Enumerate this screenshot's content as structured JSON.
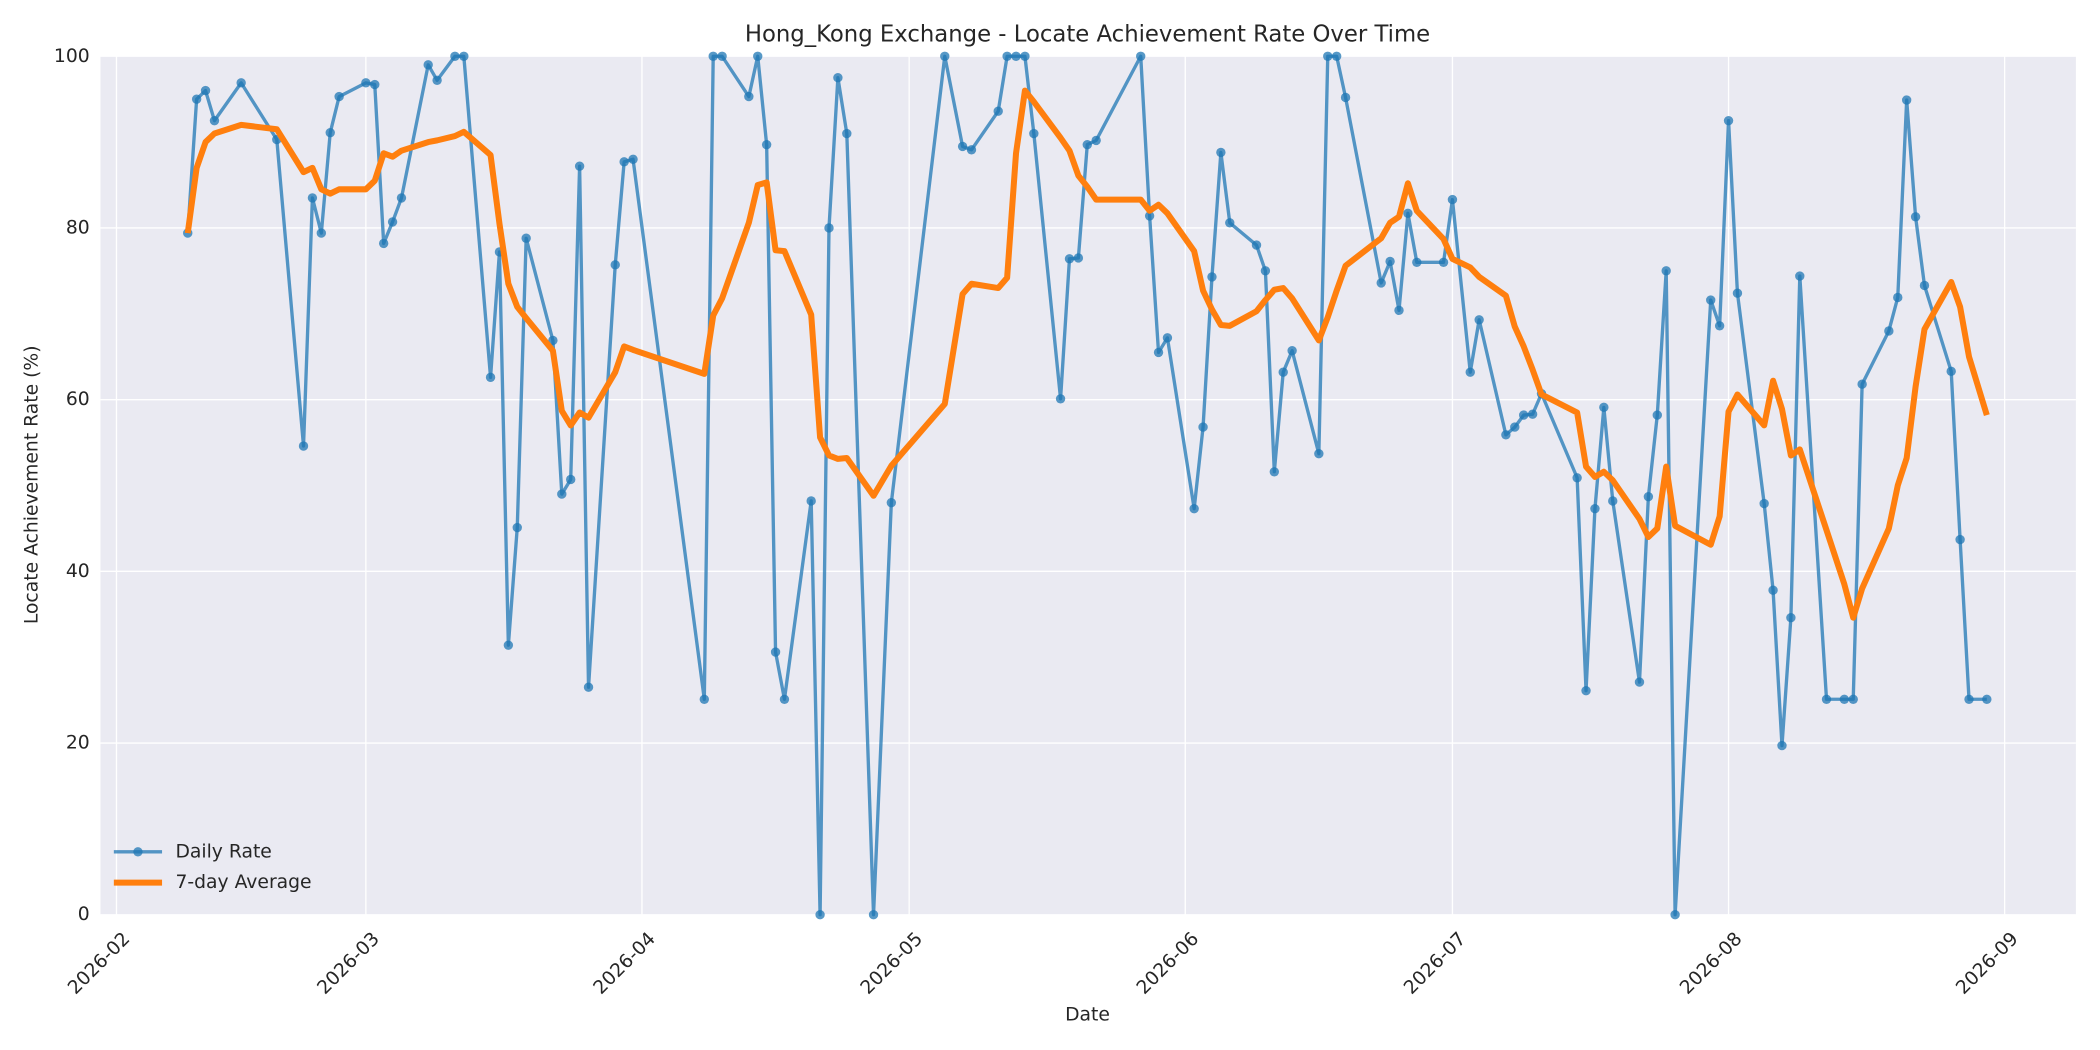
{
  "chart_data": {
    "type": "line",
    "title": "Hong_Kong Exchange - Locate Achievement Rate Over Time",
    "xlabel": "Date",
    "ylabel": "Locate Achievement Rate (%)",
    "x": [
      40,
      41,
      42,
      43,
      46,
      50,
      53,
      54,
      55,
      56,
      57,
      60,
      61,
      62,
      63,
      64,
      67,
      68,
      70,
      71,
      74,
      75,
      76,
      77,
      78,
      81,
      82,
      83,
      84,
      85,
      88,
      89,
      90,
      98,
      99,
      100,
      103,
      104,
      105,
      106,
      107,
      110,
      111,
      112,
      113,
      114,
      117,
      119,
      125,
      127,
      128,
      131,
      132,
      133,
      134,
      135,
      138,
      139,
      140,
      141,
      142,
      147,
      148,
      149,
      150,
      153,
      154,
      155,
      156,
      157,
      160,
      161,
      162,
      163,
      164,
      167,
      168,
      169,
      170,
      174,
      175,
      176,
      177,
      178,
      181,
      182,
      184,
      185,
      188,
      189,
      190,
      191,
      192,
      196,
      197,
      198,
      199,
      200,
      203,
      204,
      205,
      206,
      207,
      211,
      212,
      213,
      214,
      217,
      218,
      219,
      220,
      221,
      224,
      226,
      227,
      228,
      231,
      232,
      233,
      234,
      235,
      238,
      239,
      240,
      242
    ],
    "xlim": [
      30.2,
      252
    ],
    "xticks": [
      {
        "value": 32,
        "label": "2026-02"
      },
      {
        "value": 60,
        "label": "2026-03"
      },
      {
        "value": 91,
        "label": "2026-04"
      },
      {
        "value": 121,
        "label": "2026-05"
      },
      {
        "value": 152,
        "label": "2026-06"
      },
      {
        "value": 182,
        "label": "2026-07"
      },
      {
        "value": 213,
        "label": "2026-08"
      },
      {
        "value": 244,
        "label": "2026-09"
      }
    ],
    "ylim": [
      0,
      100
    ],
    "yticks": [
      0,
      20,
      40,
      60,
      80,
      100
    ],
    "grid": true,
    "legend": "lower left",
    "series": [
      {
        "name": "Daily Rate",
        "color": "#1f77b4",
        "marker": true,
        "values": [
          79.4,
          95,
          96,
          92.5,
          96.9,
          90.3,
          54.6,
          83.5,
          79.4,
          91.1,
          95.3,
          96.9,
          96.7,
          78.2,
          80.7,
          83.5,
          99,
          97.2,
          100,
          100,
          62.6,
          77.2,
          31.4,
          45.1,
          78.8,
          66.9,
          49,
          50.7,
          87.2,
          26.5,
          75.7,
          87.7,
          88,
          25.1,
          100,
          100,
          95.3,
          100,
          89.7,
          30.6,
          25.1,
          48.2,
          0,
          80,
          97.5,
          91,
          0,
          48,
          100,
          89.5,
          89.1,
          93.6,
          100,
          100,
          100,
          91,
          60.1,
          76.4,
          76.5,
          89.7,
          90.2,
          100,
          81.4,
          65.5,
          67.2,
          47.3,
          56.8,
          74.3,
          88.8,
          80.6,
          78,
          75,
          51.6,
          63.2,
          65.7,
          53.7,
          100,
          100,
          95.2,
          73.6,
          76.1,
          70.4,
          81.7,
          76,
          76,
          83.3,
          63.2,
          69.3,
          55.9,
          56.8,
          58.2,
          58.3,
          60.7,
          50.9,
          26.1,
          47.3,
          59.1,
          48.2,
          27.1,
          48.7,
          58.2,
          75,
          0,
          71.6,
          68.6,
          92.5,
          72.4,
          47.9,
          37.8,
          19.7,
          34.6,
          74.4,
          25.1,
          25.1,
          25.1,
          61.8,
          68,
          71.9,
          94.9,
          81.3,
          73.3,
          63.3,
          43.7,
          25.1,
          25.1
        ]
      },
      {
        "name": "7-day Average",
        "color": "#ff7f0e",
        "marker": false,
        "values": [
          79.4,
          87,
          90,
          91,
          92,
          91.5,
          86.5,
          87,
          84.5,
          84,
          84.5,
          84.5,
          85.5,
          88.7,
          88.3,
          89,
          90,
          90.2,
          90.7,
          91.2,
          88.5,
          80.5,
          73.5,
          70.8,
          69.5,
          65.7,
          58.7,
          57,
          58.5,
          57.9,
          63.2,
          66.2,
          65.8,
          63,
          69.8,
          71.8,
          80.6,
          85,
          85.3,
          77.4,
          77.3,
          69.9,
          55.6,
          53.5,
          53.1,
          53.2,
          48.8,
          52.3,
          59.5,
          72.3,
          73.5,
          73,
          74.2,
          88.7,
          96,
          94.7,
          90.5,
          89,
          86.1,
          84.8,
          83.3,
          83.3,
          82,
          82.7,
          81.7,
          77.3,
          72.7,
          70.5,
          68.7,
          68.6,
          70.3,
          71.6,
          72.8,
          73,
          71.8,
          66.9,
          69.6,
          72.7,
          75.6,
          78.8,
          80.6,
          81.3,
          85.2,
          82,
          78.7,
          76.4,
          75.4,
          74.3,
          72.1,
          68.5,
          66.2,
          63.5,
          60.6,
          58.5,
          52.2,
          51,
          51.6,
          50.6,
          46.1,
          44,
          45,
          52.2,
          45.3,
          43.1,
          46.4,
          58.6,
          60.6,
          57,
          62.2,
          58.9,
          53.5,
          54.2,
          44.8,
          38.5,
          34.6,
          38,
          45,
          50,
          53.2,
          61.5,
          68.2,
          73.7,
          70.8,
          65,
          58.2
        ]
      }
    ]
  }
}
